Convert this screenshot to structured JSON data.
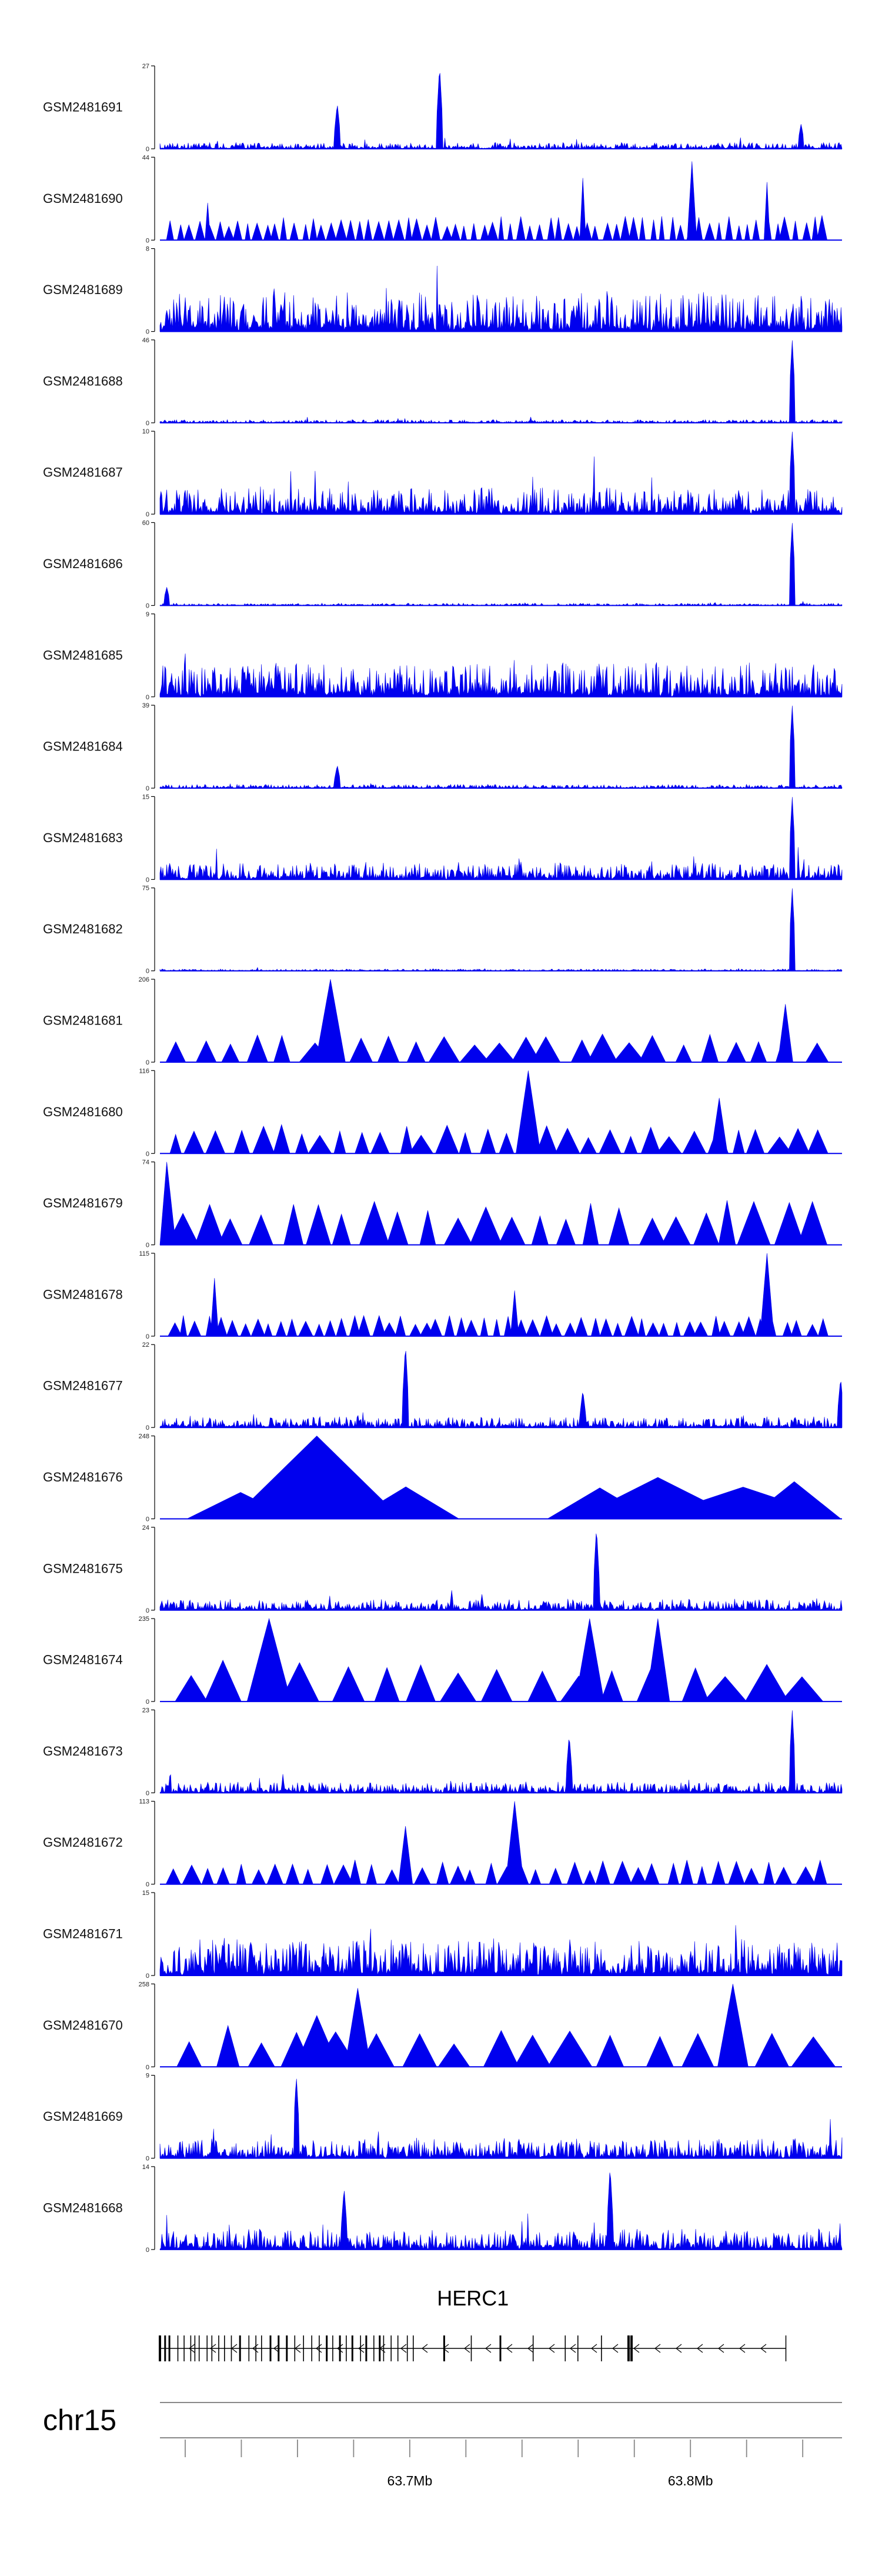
{
  "colors": {
    "signal": "#0000ee",
    "axis": "#000000",
    "gene": "#000000",
    "ruler": "#888888"
  },
  "chart_data": {
    "type": "area",
    "genome": {
      "chromosome": "chr15",
      "start_mb": 63.611,
      "end_mb": 63.854,
      "ticks_mb": [
        63.62,
        63.64,
        63.66,
        63.68,
        63.7,
        63.72,
        63.74,
        63.76,
        63.78,
        63.8,
        63.82,
        63.84
      ],
      "tick_labels": [
        {
          "mb": 63.7,
          "text": "63.7Mb"
        },
        {
          "mb": 63.8,
          "text": "63.8Mb"
        }
      ]
    },
    "gene": {
      "name": "HERC1",
      "start_mb": 63.611,
      "end_mb": 63.834,
      "strand": "-"
    },
    "tracks": [
      {
        "name": "GSM2481691",
        "ymax": 27,
        "style": "dense",
        "seed": 11,
        "base": 0.07,
        "peaks": [
          [
            0.41,
            1.0
          ],
          [
            0.26,
            0.55
          ],
          [
            0.94,
            0.3
          ]
        ]
      },
      {
        "name": "GSM2481690",
        "ymax": 44,
        "style": "sparse",
        "seed": 12,
        "n": 70,
        "base": 0.3,
        "peaks": [
          [
            0.78,
            0.95
          ],
          [
            0.62,
            0.75
          ],
          [
            0.07,
            0.45
          ],
          [
            0.89,
            0.7
          ]
        ]
      },
      {
        "name": "GSM2481689",
        "ymax": 8,
        "style": "dense",
        "seed": 13,
        "base": 0.42
      },
      {
        "name": "GSM2481688",
        "ymax": 46,
        "style": "dense",
        "seed": 14,
        "base": 0.035,
        "peaks": [
          [
            0.927,
            1.0
          ]
        ]
      },
      {
        "name": "GSM2481687",
        "ymax": 10,
        "style": "dense",
        "seed": 15,
        "base": 0.3,
        "peaks": [
          [
            0.927,
            1.0
          ]
        ]
      },
      {
        "name": "GSM2481686",
        "ymax": 60,
        "style": "dense",
        "seed": 16,
        "base": 0.025,
        "peaks": [
          [
            0.927,
            1.0
          ],
          [
            0.01,
            0.22
          ]
        ]
      },
      {
        "name": "GSM2481685",
        "ymax": 9,
        "style": "dense",
        "seed": 17,
        "base": 0.38
      },
      {
        "name": "GSM2481684",
        "ymax": 39,
        "style": "dense",
        "seed": 18,
        "base": 0.04,
        "peaks": [
          [
            0.927,
            1.0
          ],
          [
            0.26,
            0.28
          ]
        ]
      },
      {
        "name": "GSM2481683",
        "ymax": 15,
        "style": "dense",
        "seed": 19,
        "base": 0.18,
        "peaks": [
          [
            0.927,
            1.0
          ]
        ]
      },
      {
        "name": "GSM2481682",
        "ymax": 75,
        "style": "dense",
        "seed": 20,
        "base": 0.02,
        "peaks": [
          [
            0.927,
            1.0
          ]
        ]
      },
      {
        "name": "GSM2481681",
        "ymax": 206,
        "style": "sparse",
        "seed": 21,
        "n": 25,
        "base": 0.35,
        "peaks": [
          [
            0.25,
            1.0
          ],
          [
            0.917,
            0.7
          ]
        ]
      },
      {
        "name": "GSM2481680",
        "ymax": 116,
        "style": "sparse",
        "seed": 22,
        "n": 32,
        "base": 0.35,
        "peaks": [
          [
            0.54,
            1.0
          ],
          [
            0.82,
            0.67
          ]
        ]
      },
      {
        "name": "GSM2481679",
        "ymax": 74,
        "style": "sparse",
        "seed": 23,
        "n": 24,
        "base": 0.55,
        "peaks": [
          [
            0.01,
            1.0
          ]
        ]
      },
      {
        "name": "GSM2481678",
        "ymax": 115,
        "style": "sparse",
        "seed": 24,
        "n": 55,
        "base": 0.25,
        "peaks": [
          [
            0.89,
            1.0
          ],
          [
            0.08,
            0.7
          ],
          [
            0.52,
            0.55
          ]
        ]
      },
      {
        "name": "GSM2481677",
        "ymax": 22,
        "style": "dense",
        "seed": 25,
        "base": 0.12,
        "peaks": [
          [
            0.36,
            1.0
          ],
          [
            0.62,
            0.45
          ],
          [
            0.998,
            0.6
          ]
        ]
      },
      {
        "name": "GSM2481676",
        "ymax": 248,
        "style": "sparse",
        "seed": 26,
        "n": 4,
        "base": 0.5,
        "peaks": [
          [
            0.23,
            1.0
          ],
          [
            0.73,
            0.5
          ],
          [
            0.93,
            0.45
          ]
        ]
      },
      {
        "name": "GSM2481675",
        "ymax": 24,
        "style": "dense",
        "seed": 27,
        "base": 0.12,
        "peaks": [
          [
            0.64,
            1.0
          ]
        ]
      },
      {
        "name": "GSM2481674",
        "ymax": 235,
        "style": "sparse",
        "seed": 28,
        "n": 17,
        "base": 0.5,
        "peaks": [
          [
            0.16,
            1.0
          ],
          [
            0.63,
            1.0
          ],
          [
            0.73,
            1.0
          ]
        ]
      },
      {
        "name": "GSM2481673",
        "ymax": 23,
        "style": "dense",
        "seed": 29,
        "base": 0.12,
        "peaks": [
          [
            0.927,
            1.0
          ],
          [
            0.6,
            0.7
          ]
        ]
      },
      {
        "name": "GSM2481672",
        "ymax": 113,
        "style": "sparse",
        "seed": 30,
        "n": 40,
        "base": 0.3,
        "peaks": [
          [
            0.52,
            1.0
          ],
          [
            0.36,
            0.7
          ]
        ]
      },
      {
        "name": "GSM2481671",
        "ymax": 15,
        "style": "dense",
        "seed": 31,
        "base": 0.4
      },
      {
        "name": "GSM2481670",
        "ymax": 258,
        "style": "sparse",
        "seed": 32,
        "n": 17,
        "base": 0.5,
        "peaks": [
          [
            0.84,
            1.0
          ],
          [
            0.29,
            0.95
          ],
          [
            0.23,
            0.62
          ]
        ]
      },
      {
        "name": "GSM2481669",
        "ymax": 9,
        "style": "dense",
        "seed": 33,
        "base": 0.22,
        "peaks": [
          [
            0.2,
            1.0
          ]
        ]
      },
      {
        "name": "GSM2481668",
        "ymax": 14,
        "style": "dense",
        "seed": 34,
        "base": 0.22,
        "peaks": [
          [
            0.66,
            1.0
          ],
          [
            0.27,
            0.75
          ]
        ]
      }
    ]
  }
}
